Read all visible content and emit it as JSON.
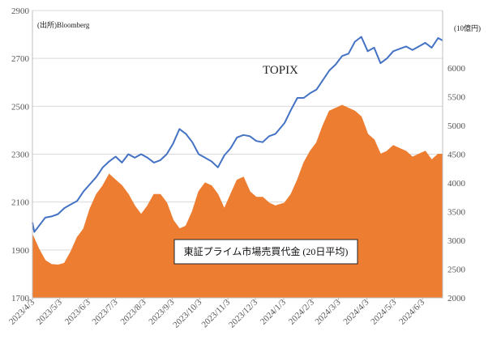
{
  "chart_data": {
    "type": "line",
    "source_note": "(出所)Bloomberg",
    "right_unit": "(10億円)",
    "left_axis": {
      "min": 1700,
      "max": 2900,
      "ticks": [
        "1700",
        "1900",
        "2100",
        "2300",
        "2500",
        "2700",
        "2900"
      ]
    },
    "right_axis": {
      "min": 2000,
      "max": 7000,
      "ticks": [
        "2000",
        "2500",
        "3000",
        "3500",
        "4000",
        "4500",
        "5000",
        "5500",
        "6000"
      ]
    },
    "x_ticks": [
      "2023/4/3",
      "2023/5/3",
      "2023/6/3",
      "2023/7/3",
      "2023/8/3",
      "2023/9/3",
      "2023/10/3",
      "2023/11/3",
      "2023/12/3",
      "2024/1/3",
      "2024/2/3",
      "2024/3/3",
      "2024/4/3",
      "2024/5/3",
      "2024/6/3"
    ],
    "series": [
      {
        "name": "TOPIX",
        "axis": "left",
        "color": "#4472c4",
        "kind": "line",
        "points": [
          [
            "2023/4/3",
            2015
          ],
          [
            "2023/4/5",
            1975
          ],
          [
            "2023/4/10",
            2000
          ],
          [
            "2023/4/17",
            2035
          ],
          [
            "2023/4/24",
            2040
          ],
          [
            "2023/5/1",
            2050
          ],
          [
            "2023/5/8",
            2075
          ],
          [
            "2023/5/15",
            2090
          ],
          [
            "2023/5/22",
            2105
          ],
          [
            "2023/5/29",
            2145
          ],
          [
            "2023/6/5",
            2175
          ],
          [
            "2023/6/12",
            2205
          ],
          [
            "2023/6/19",
            2245
          ],
          [
            "2023/6/26",
            2270
          ],
          [
            "2023/7/3",
            2290
          ],
          [
            "2023/7/10",
            2265
          ],
          [
            "2023/7/17",
            2300
          ],
          [
            "2023/7/24",
            2285
          ],
          [
            "2023/7/31",
            2300
          ],
          [
            "2023/8/7",
            2285
          ],
          [
            "2023/8/14",
            2265
          ],
          [
            "2023/8/21",
            2275
          ],
          [
            "2023/8/28",
            2300
          ],
          [
            "2023/9/4",
            2345
          ],
          [
            "2023/9/11",
            2405
          ],
          [
            "2023/9/18",
            2385
          ],
          [
            "2023/9/25",
            2350
          ],
          [
            "2023/10/2",
            2300
          ],
          [
            "2023/10/9",
            2285
          ],
          [
            "2023/10/16",
            2270
          ],
          [
            "2023/10/23",
            2245
          ],
          [
            "2023/10/30",
            2295
          ],
          [
            "2023/11/6",
            2325
          ],
          [
            "2023/11/13",
            2370
          ],
          [
            "2023/11/20",
            2380
          ],
          [
            "2023/11/27",
            2375
          ],
          [
            "2023/12/4",
            2355
          ],
          [
            "2023/12/11",
            2350
          ],
          [
            "2023/12/18",
            2375
          ],
          [
            "2023/12/25",
            2385
          ],
          [
            "2024/1/4",
            2430
          ],
          [
            "2024/1/11",
            2485
          ],
          [
            "2024/1/18",
            2535
          ],
          [
            "2024/1/25",
            2535
          ],
          [
            "2024/2/1",
            2555
          ],
          [
            "2024/2/8",
            2570
          ],
          [
            "2024/2/15",
            2610
          ],
          [
            "2024/2/22",
            2650
          ],
          [
            "2024/2/29",
            2675
          ],
          [
            "2024/3/7",
            2710
          ],
          [
            "2024/3/14",
            2720
          ],
          [
            "2024/3/21",
            2770
          ],
          [
            "2024/3/28",
            2790
          ],
          [
            "2024/4/4",
            2730
          ],
          [
            "2024/4/11",
            2745
          ],
          [
            "2024/4/18",
            2680
          ],
          [
            "2024/4/25",
            2700
          ],
          [
            "2024/5/2",
            2730
          ],
          [
            "2024/5/9",
            2740
          ],
          [
            "2024/5/16",
            2750
          ],
          [
            "2024/5/23",
            2735
          ],
          [
            "2024/5/30",
            2750
          ],
          [
            "2024/6/6",
            2765
          ],
          [
            "2024/6/13",
            2745
          ],
          [
            "2024/6/20",
            2785
          ],
          [
            "2024/6/25",
            2775
          ]
        ]
      },
      {
        "name": "東証プライム市場売買代金 (20日平均)",
        "axis": "right",
        "color": "#ed7d31",
        "kind": "area",
        "points": [
          [
            "2023/4/3",
            3100
          ],
          [
            "2023/4/10",
            2850
          ],
          [
            "2023/4/17",
            2650
          ],
          [
            "2023/4/24",
            2580
          ],
          [
            "2023/5/1",
            2570
          ],
          [
            "2023/5/8",
            2600
          ],
          [
            "2023/5/15",
            2800
          ],
          [
            "2023/5/22",
            3050
          ],
          [
            "2023/5/29",
            3200
          ],
          [
            "2023/6/5",
            3550
          ],
          [
            "2023/6/12",
            3800
          ],
          [
            "2023/6/19",
            3950
          ],
          [
            "2023/6/26",
            4150
          ],
          [
            "2023/7/3",
            4050
          ],
          [
            "2023/7/10",
            3950
          ],
          [
            "2023/7/17",
            3800
          ],
          [
            "2023/7/24",
            3600
          ],
          [
            "2023/7/31",
            3450
          ],
          [
            "2023/8/7",
            3600
          ],
          [
            "2023/8/14",
            3800
          ],
          [
            "2023/8/21",
            3800
          ],
          [
            "2023/8/28",
            3650
          ],
          [
            "2023/9/4",
            3350
          ],
          [
            "2023/9/11",
            3200
          ],
          [
            "2023/9/18",
            3250
          ],
          [
            "2023/9/25",
            3500
          ],
          [
            "2023/10/2",
            3850
          ],
          [
            "2023/10/9",
            4000
          ],
          [
            "2023/10/16",
            3950
          ],
          [
            "2023/10/23",
            3800
          ],
          [
            "2023/10/30",
            3550
          ],
          [
            "2023/11/6",
            3800
          ],
          [
            "2023/11/13",
            4050
          ],
          [
            "2023/11/20",
            4100
          ],
          [
            "2023/11/27",
            3850
          ],
          [
            "2023/12/4",
            3750
          ],
          [
            "2023/12/11",
            3750
          ],
          [
            "2023/12/18",
            3650
          ],
          [
            "2023/12/25",
            3600
          ],
          [
            "2024/1/4",
            3650
          ],
          [
            "2024/1/11",
            3800
          ],
          [
            "2024/1/18",
            4050
          ],
          [
            "2024/1/25",
            4350
          ],
          [
            "2024/2/1",
            4550
          ],
          [
            "2024/2/8",
            4700
          ],
          [
            "2024/2/15",
            5000
          ],
          [
            "2024/2/22",
            5250
          ],
          [
            "2024/2/29",
            5300
          ],
          [
            "2024/3/7",
            5350
          ],
          [
            "2024/3/14",
            5300
          ],
          [
            "2024/3/21",
            5250
          ],
          [
            "2024/3/28",
            5150
          ],
          [
            "2024/4/4",
            4850
          ],
          [
            "2024/4/11",
            4750
          ],
          [
            "2024/4/18",
            4500
          ],
          [
            "2024/4/25",
            4550
          ],
          [
            "2024/5/2",
            4650
          ],
          [
            "2024/5/9",
            4600
          ],
          [
            "2024/5/16",
            4550
          ],
          [
            "2024/5/23",
            4450
          ],
          [
            "2024/5/30",
            4500
          ],
          [
            "2024/6/6",
            4550
          ],
          [
            "2024/6/13",
            4400
          ],
          [
            "2024/6/20",
            4500
          ],
          [
            "2024/6/25",
            4500
          ]
        ]
      }
    ],
    "annotations": {
      "topix_label": "TOPIX",
      "volume_label": "東証プライム市場売買代金 (20日平均)"
    }
  }
}
